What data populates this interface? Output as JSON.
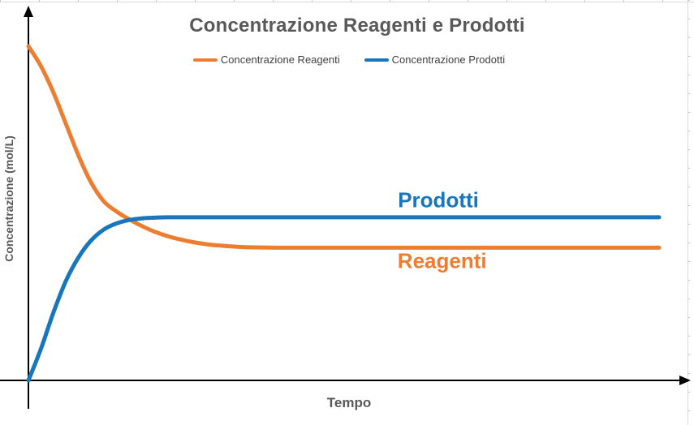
{
  "title": {
    "text": "Concentrazione Reagenti e Prodotti",
    "color": "#595959"
  },
  "legend": {
    "items": [
      {
        "label": "Concentrazione Reagenti",
        "color": "#ED7D31"
      },
      {
        "label": "Concentrazione Prodotti",
        "color": "#1776BC"
      }
    ]
  },
  "axes": {
    "x_label": "Tempo",
    "y_label": "Concentrazione (mol/L)",
    "axis_color": "#000000"
  },
  "annotations": {
    "products": {
      "text": "Prodotti",
      "color": "#1776BC"
    },
    "reagents": {
      "text": "Reagenti",
      "color": "#ED7D31"
    }
  },
  "chart_data": {
    "type": "line",
    "title": "Concentrazione Reagenti e Prodotti",
    "xlabel": "Tempo",
    "ylabel": "Concentrazione (mol/L)",
    "xlim": [
      0,
      10
    ],
    "ylim": [
      0,
      1.05
    ],
    "grid": false,
    "legend_position": "top",
    "axis_ticks": "none (qualitative chart, unlabeled axes with arrowheads)",
    "x": [
      0,
      0.2,
      0.4,
      0.6,
      0.8,
      1.0,
      1.2,
      1.4,
      1.6,
      1.8,
      2.0,
      2.2,
      2.4,
      2.6,
      2.8,
      3.0,
      3.3,
      3.6,
      4.0,
      4.5,
      5.0,
      6.0,
      7.0,
      8.0,
      9.0,
      10.0
    ],
    "series": [
      {
        "name": "Concentrazione Reagenti",
        "color": "#ED7D31",
        "equilibrium_value": 0.397,
        "values": [
          1.0,
          0.94,
          0.86,
          0.765,
          0.67,
          0.59,
          0.535,
          0.505,
          0.482,
          0.462,
          0.445,
          0.432,
          0.422,
          0.414,
          0.408,
          0.404,
          0.4,
          0.398,
          0.397,
          0.397,
          0.397,
          0.397,
          0.397,
          0.397,
          0.397,
          0.397
        ]
      },
      {
        "name": "Concentrazione Prodotti",
        "color": "#1776BC",
        "equilibrium_value": 0.488,
        "values": [
          0.0,
          0.095,
          0.205,
          0.3,
          0.37,
          0.42,
          0.452,
          0.47,
          0.48,
          0.485,
          0.487,
          0.488,
          0.488,
          0.488,
          0.488,
          0.488,
          0.488,
          0.488,
          0.488,
          0.488,
          0.488,
          0.488,
          0.488,
          0.488,
          0.488,
          0.488
        ]
      }
    ],
    "crossing_point": {
      "x": 1.6,
      "y": 0.48
    },
    "annotations": [
      {
        "text": "Prodotti",
        "x": 6.5,
        "y": 0.54,
        "color": "#1776BC"
      },
      {
        "text": "Reagenti",
        "x": 6.56,
        "y": 0.357,
        "color": "#ED7D31"
      }
    ]
  }
}
